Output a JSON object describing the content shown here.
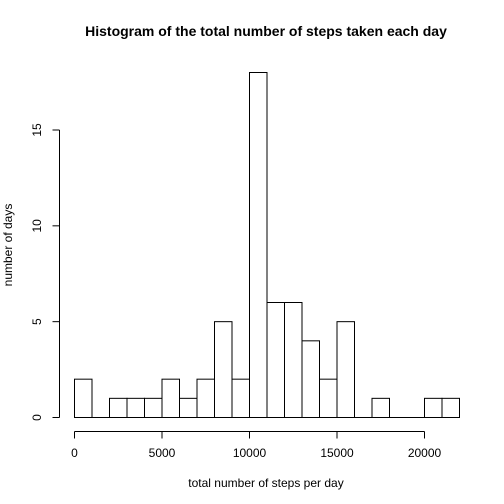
{
  "chart_data": {
    "type": "bar",
    "title": "Histogram of the total number of steps taken each day",
    "xlabel": "total number of steps per day",
    "ylabel": "number of days",
    "bin_width": 1000,
    "bin_start": 0,
    "bin_end": 22000,
    "values": [
      2,
      0,
      1,
      1,
      1,
      2,
      1,
      2,
      5,
      2,
      18,
      6,
      6,
      4,
      2,
      5,
      0,
      1,
      0,
      0,
      1,
      1
    ],
    "xlim": [
      0,
      22000
    ],
    "ylim": [
      0,
      18
    ],
    "x_ticks": [
      0,
      5000,
      10000,
      15000,
      20000
    ],
    "y_ticks": [
      0,
      5,
      10,
      15
    ],
    "x_tick_labels": [
      "0",
      "5000",
      "10000",
      "15000",
      "20000"
    ],
    "y_tick_labels": [
      "0",
      "5",
      "10",
      "15"
    ],
    "grid": false,
    "bar_fill": "#ffffff",
    "bar_stroke": "#000000"
  }
}
